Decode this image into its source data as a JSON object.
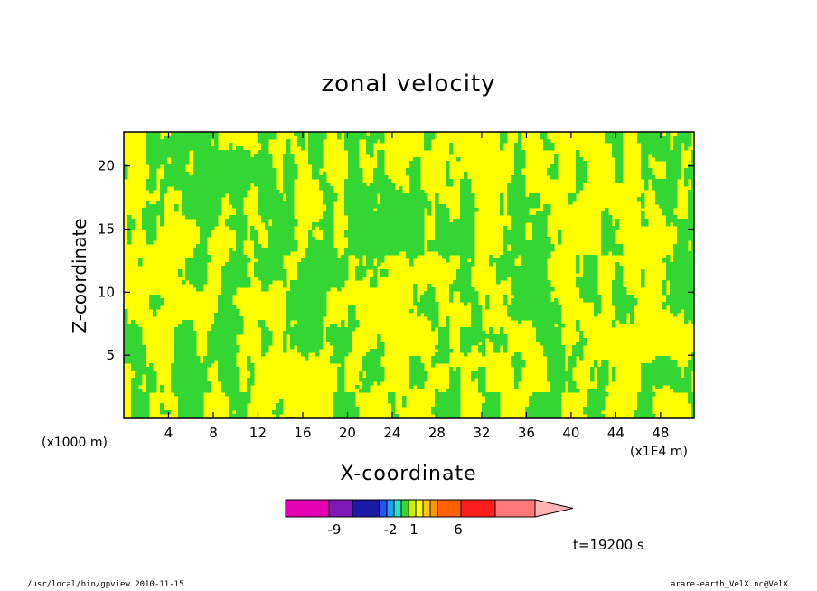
{
  "chart_data": {
    "type": "heatmap",
    "title": "zonal velocity",
    "xlabel": "X-coordinate",
    "ylabel": "Z-coordinate",
    "x_unit_label": "(x1E4 m)",
    "y_unit_label": "(x1000 m)",
    "x_ticks": [
      "4",
      "8",
      "12",
      "16",
      "20",
      "24",
      "28",
      "32",
      "36",
      "40",
      "44",
      "48"
    ],
    "y_ticks": [
      "5",
      "10",
      "15",
      "20"
    ],
    "xlim": [
      0,
      51
    ],
    "ylim": [
      0,
      22.7
    ],
    "colorbar": {
      "labels": [
        "-9",
        "-2",
        "1",
        "6"
      ],
      "colors": [
        "#e600b4",
        "#7d19b4",
        "#1a1aa6",
        "#2255ee",
        "#22a0f0",
        "#22e6c8",
        "#33d633",
        "#c8f000",
        "#ffff00",
        "#ffc800",
        "#ff9600",
        "#ff6000",
        "#ff1e1e",
        "#ff7777",
        "#ffb4b4"
      ]
    },
    "dominant_colors": {
      "low": "#33d633",
      "high": "#ffff00",
      "contour": "#1a1a8c"
    },
    "grid": false
  },
  "annotations": {
    "time": "t=19200 s",
    "footer_left": "/usr/local/bin/gpview   2010-11-15",
    "footer_right": "arare-earth_VelX.nc@VelX"
  }
}
